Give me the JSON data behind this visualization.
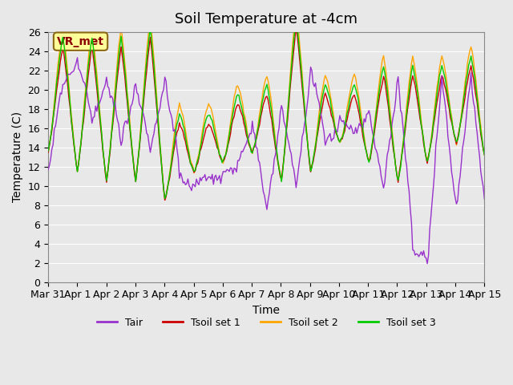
{
  "title": "Soil Temperature at -4cm",
  "xlabel": "Time",
  "ylabel": "Temperature (C)",
  "ylim": [
    0,
    26
  ],
  "yticks": [
    0,
    2,
    4,
    6,
    8,
    10,
    12,
    14,
    16,
    18,
    20,
    22,
    24,
    26
  ],
  "xtick_labels": [
    "Mar 31",
    "Apr 1",
    "Apr 2",
    "Apr 3",
    "Apr 4",
    "Apr 5",
    "Apr 6",
    "Apr 7",
    "Apr 8",
    "Apr 9",
    "Apr 10",
    "Apr 11",
    "Apr 12",
    "Apr 13",
    "Apr 14",
    "Apr 15"
  ],
  "colors": {
    "Tair": "#9932CC",
    "Tsoil_set1": "#CC0000",
    "Tsoil_set2": "#FFA500",
    "Tsoil_set3": "#00CC00"
  },
  "background_color": "#E8E8E8",
  "plot_bg_color": "#E8E8E8",
  "annotation_text": "VR_met",
  "annotation_box_color": "#FFFF99",
  "annotation_text_color": "#8B0000",
  "legend_labels": [
    "Tair",
    "Tsoil set 1",
    "Tsoil set 2",
    "Tsoil set 3"
  ],
  "title_fontsize": 13,
  "axis_label_fontsize": 10,
  "tick_fontsize": 9
}
